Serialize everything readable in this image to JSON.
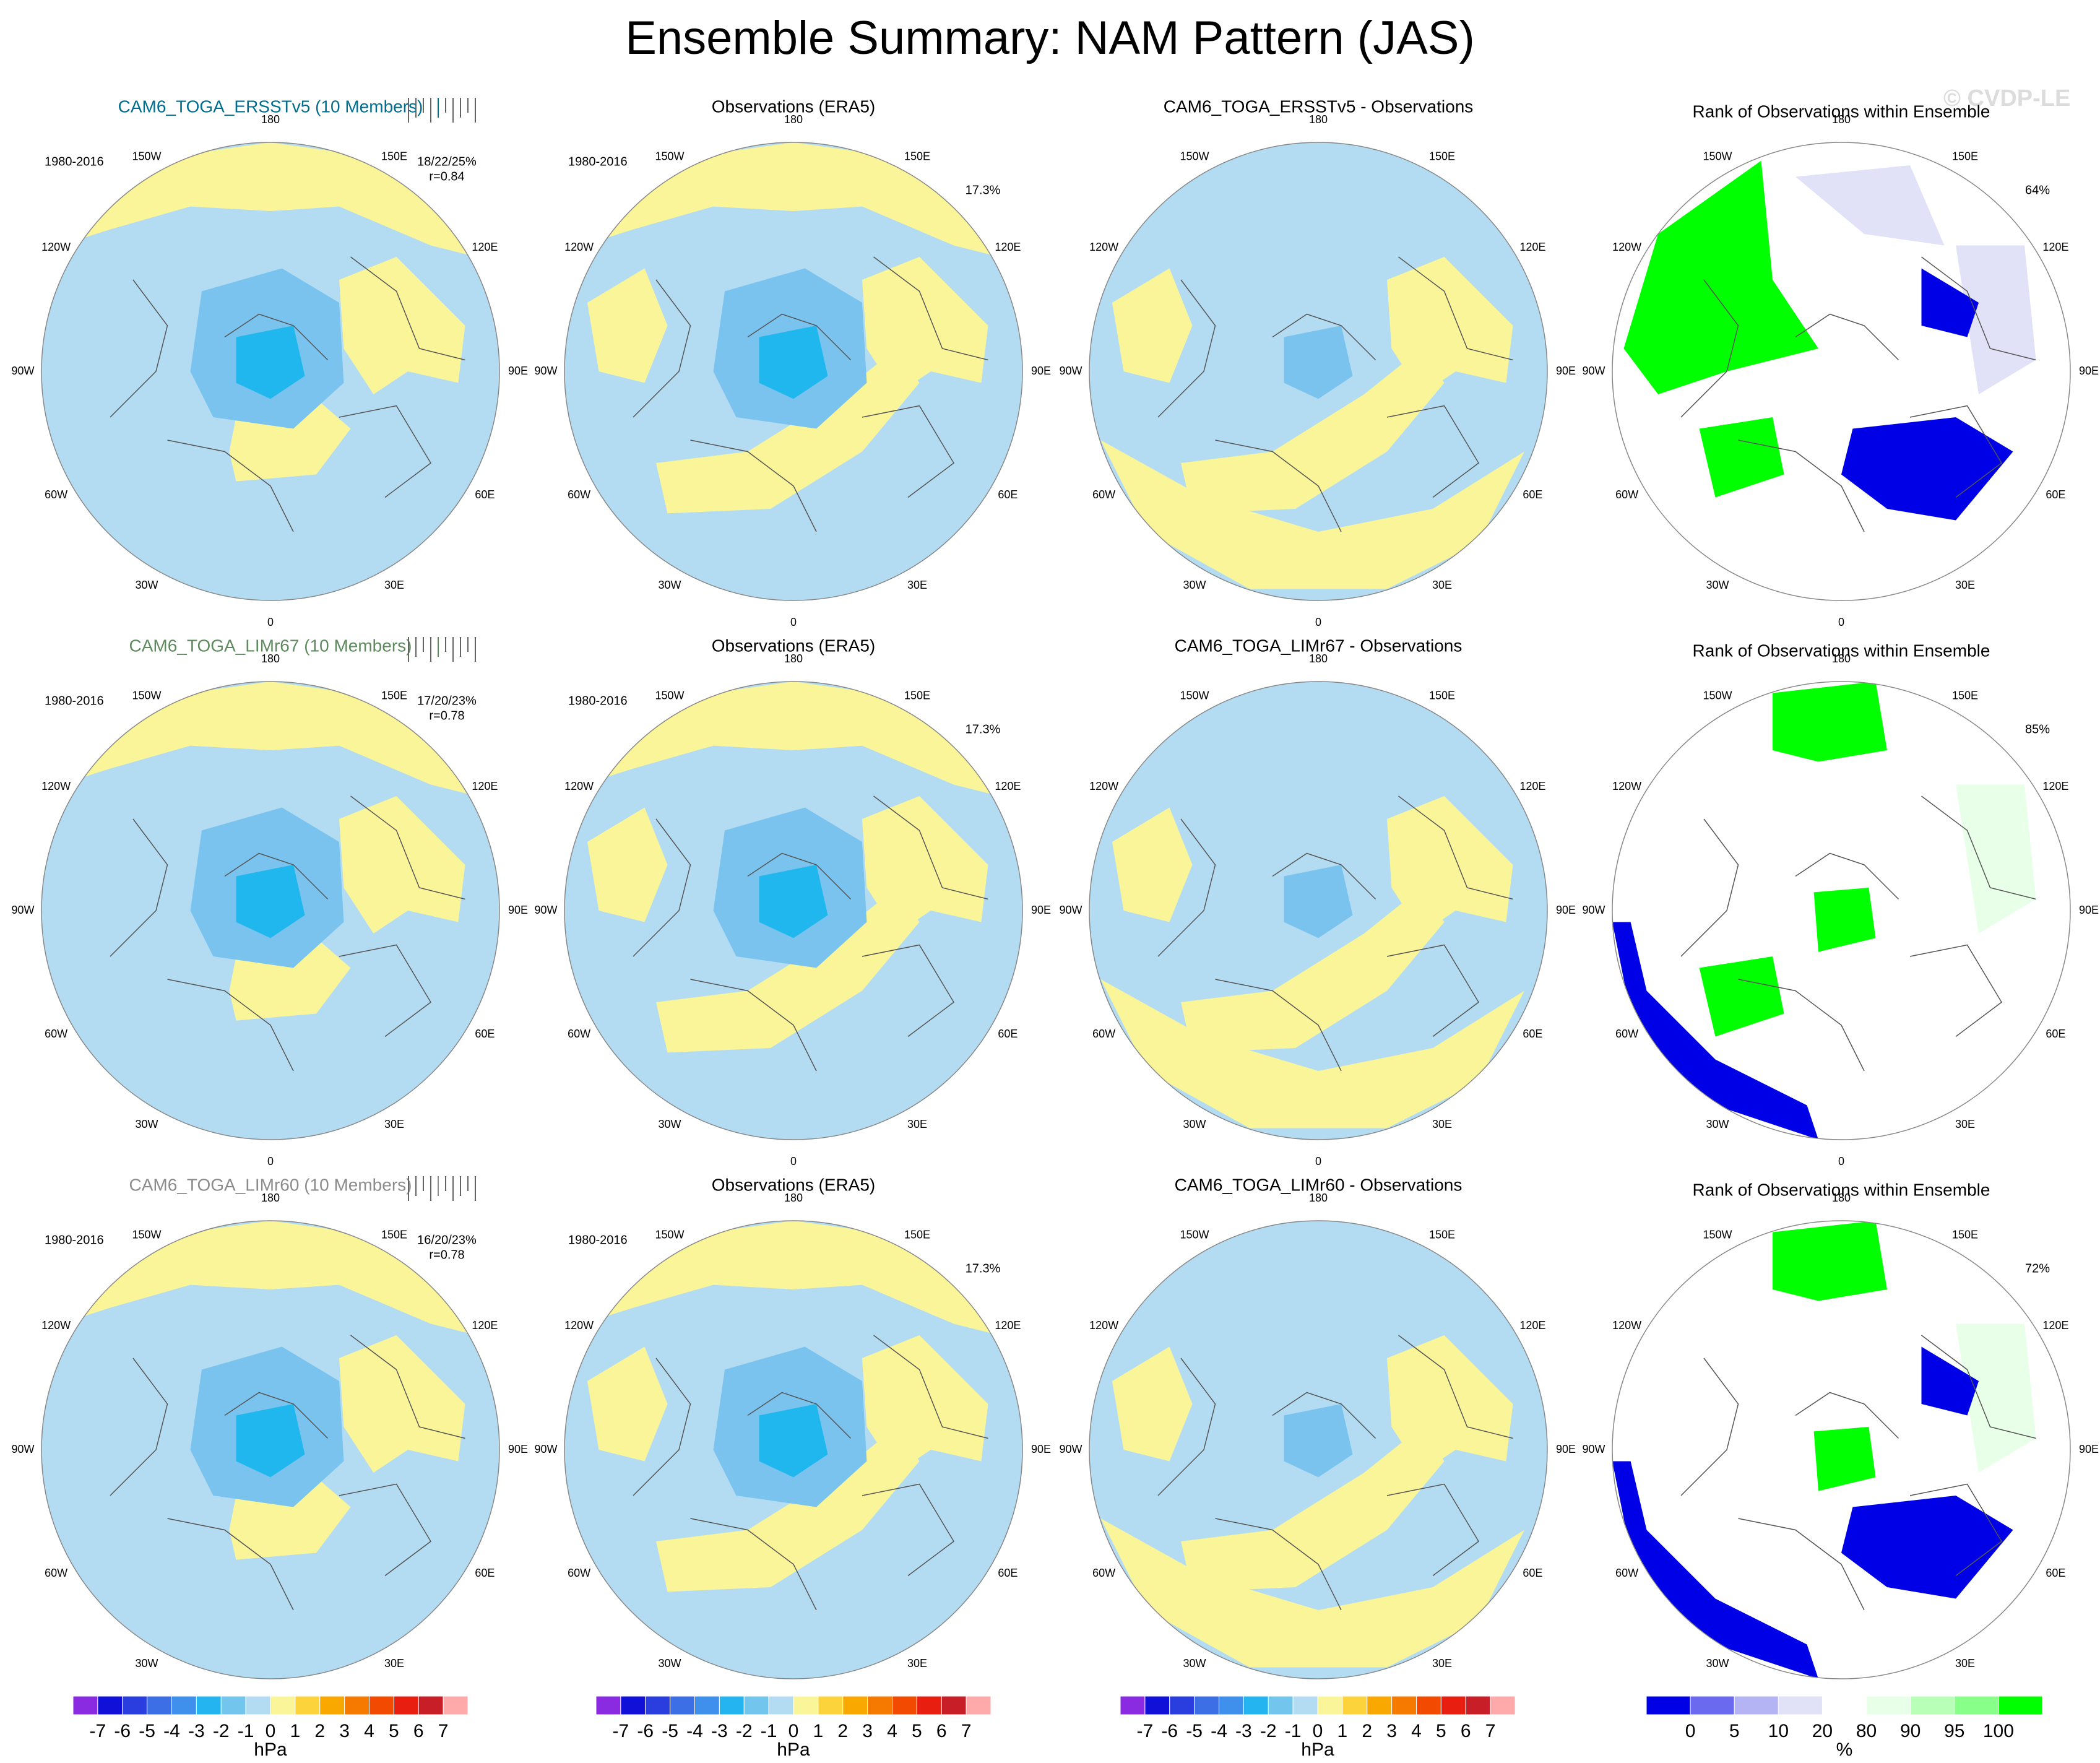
{
  "title": "Ensemble Summary: NAM Pattern (JAS)",
  "watermark": "© CVDP-LE",
  "colors": {
    "neg1": "#b3dcf2",
    "neg2": "#79c3ee",
    "neg3": "#1fb7ee",
    "pos1": "#fbf59a",
    "pos2": "#fcd33a",
    "rank_low": "#0000e6",
    "rank_high": "#00ff00",
    "rank_lav": "#e1e1f8",
    "rank_pale": "#e8ffe8",
    "land": "#555555"
  },
  "chart_data": {
    "type": "heatmap",
    "projection": "north-polar-stereographic",
    "lon_labels": [
      "180",
      "150E",
      "120E",
      "90E",
      "60E",
      "30E",
      "0",
      "30W",
      "60W",
      "90W",
      "120W",
      "150W"
    ],
    "columns": [
      {
        "kind": "model"
      },
      {
        "kind": "obs",
        "title": "Observations (ERA5)"
      },
      {
        "kind": "diff"
      },
      {
        "kind": "rank",
        "title": "Rank of Observations within Ensemble"
      }
    ],
    "rows": [
      {
        "model": "CAM6_TOGA_ERSSTv5",
        "model_title": "CAM6_TOGA_ERSSTv5 (10 Members)",
        "title_color": "#006d8f",
        "period": "1980-2016",
        "stats": "18/22/25%",
        "corr": "r=0.84",
        "obs_period": "1980-2016",
        "obs_pct": "17.3%",
        "diff_title": "CAM6_TOGA_ERSSTv5 - Observations",
        "rank_pct": "64%"
      },
      {
        "model": "CAM6_TOGA_LIMr67",
        "model_title": "CAM6_TOGA_LIMr67 (10 Members)",
        "title_color": "#5e8a5e",
        "period": "1980-2016",
        "stats": "17/20/23%",
        "corr": "r=0.78",
        "obs_period": "1980-2016",
        "obs_pct": "17.3%",
        "diff_title": "CAM6_TOGA_LIMr67 - Observations",
        "rank_pct": "85%"
      },
      {
        "model": "CAM6_TOGA_LIMr60",
        "model_title": "CAM6_TOGA_LIMr60 (10 Members)",
        "title_color": "#8c8c8c",
        "period": "1980-2016",
        "stats": "16/20/23%",
        "corr": "r=0.78",
        "obs_period": "1980-2016",
        "obs_pct": "17.3%",
        "diff_title": "CAM6_TOGA_LIMr60 - Observations",
        "rank_pct": "72%"
      }
    ],
    "colorbar_hpa": {
      "labels": [
        "-7",
        "-6",
        "-5",
        "-4",
        "-3",
        "-2",
        "-1",
        "0",
        "1",
        "2",
        "3",
        "4",
        "5",
        "6",
        "7"
      ],
      "colors": [
        "#8a2be2",
        "#1010d8",
        "#2a3ee0",
        "#3c6ee6",
        "#3e90ec",
        "#24b4f0",
        "#72c6ee",
        "#b3dcf2",
        "#fbf59a",
        "#fcd33a",
        "#f9a800",
        "#f77a00",
        "#f24a00",
        "#e81e10",
        "#c81e28",
        "#ffaaaa"
      ],
      "unit": "hPa"
    },
    "colorbar_rank": {
      "labels": [
        "0",
        "5",
        "10",
        "20",
        "80",
        "90",
        "95",
        "100"
      ],
      "colors": [
        "#0000e6",
        "#6a6aee",
        "#b4b4f4",
        "#e1e1f8",
        "#ffffff",
        "#e8ffe8",
        "#b8ffb8",
        "#88ff88",
        "#00ff00"
      ],
      "unit": "%"
    }
  }
}
